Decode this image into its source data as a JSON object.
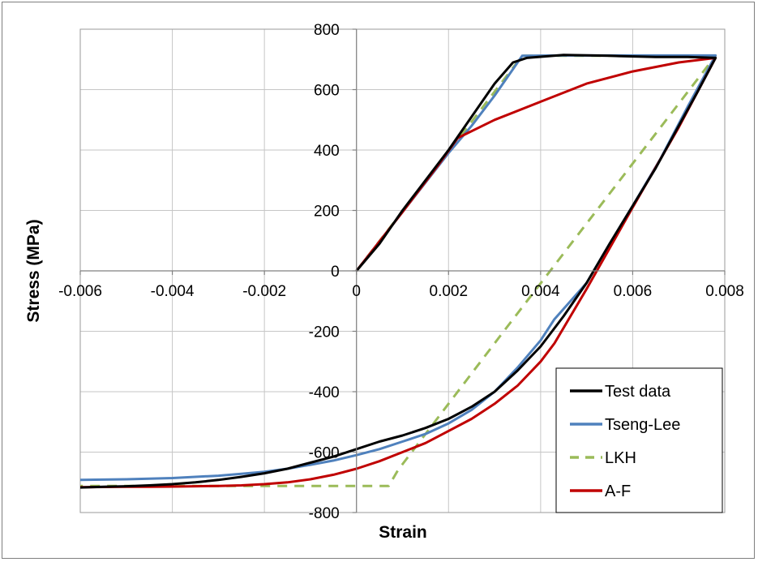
{
  "chart_data": {
    "type": "line",
    "title": "",
    "xlabel": "Strain",
    "ylabel": "Stress (MPa)",
    "xlim": [
      -0.006,
      0.008
    ],
    "ylim": [
      -800,
      800
    ],
    "grid": true,
    "legend_position": "bottom-right",
    "x_ticks": [
      "-0.006",
      "-0.004",
      "-0.002",
      "0",
      "0.002",
      "0.004",
      "0.006",
      "0.008"
    ],
    "y_ticks": [
      "-800",
      "-600",
      "-400",
      "-200",
      "0",
      "200",
      "400",
      "600",
      "800"
    ],
    "series": [
      {
        "name": "Test data",
        "color": "#000000",
        "dash": "solid",
        "points": [
          [
            0,
            0
          ],
          [
            0.0005,
            90
          ],
          [
            0.001,
            200
          ],
          [
            0.0015,
            300
          ],
          [
            0.002,
            400
          ],
          [
            0.0025,
            510
          ],
          [
            0.003,
            620
          ],
          [
            0.0034,
            690
          ],
          [
            0.0037,
            705
          ],
          [
            0.0045,
            715
          ],
          [
            0.0055,
            712
          ],
          [
            0.0065,
            708
          ],
          [
            0.0072,
            708
          ],
          [
            0.0078,
            705
          ],
          [
            0.0074,
            590
          ],
          [
            0.007,
            480
          ],
          [
            0.0065,
            340
          ],
          [
            0.006,
            215
          ],
          [
            0.0055,
            90
          ],
          [
            0.005,
            -40
          ],
          [
            0.0045,
            -150
          ],
          [
            0.004,
            -250
          ],
          [
            0.0035,
            -330
          ],
          [
            0.003,
            -400
          ],
          [
            0.0025,
            -450
          ],
          [
            0.002,
            -490
          ],
          [
            0.0015,
            -520
          ],
          [
            0.001,
            -545
          ],
          [
            0.0005,
            -565
          ],
          [
            0,
            -590
          ],
          [
            -0.0005,
            -615
          ],
          [
            -0.001,
            -635
          ],
          [
            -0.0015,
            -655
          ],
          [
            -0.002,
            -670
          ],
          [
            -0.0025,
            -682
          ],
          [
            -0.003,
            -692
          ],
          [
            -0.0035,
            -700
          ],
          [
            -0.004,
            -706
          ],
          [
            -0.0045,
            -710
          ],
          [
            -0.005,
            -713
          ],
          [
            -0.0055,
            -715
          ],
          [
            -0.006,
            -717
          ]
        ]
      },
      {
        "name": "Tseng-Lee",
        "color": "#4f81bd",
        "dash": "solid",
        "points": [
          [
            0,
            0
          ],
          [
            0.001,
            195
          ],
          [
            0.002,
            390
          ],
          [
            0.0025,
            480
          ],
          [
            0.003,
            580
          ],
          [
            0.0035,
            690
          ],
          [
            0.0036,
            712
          ],
          [
            0.0045,
            713
          ],
          [
            0.0055,
            713
          ],
          [
            0.0065,
            713
          ],
          [
            0.0078,
            713
          ],
          [
            0.0072,
            545
          ],
          [
            0.0066,
            370
          ],
          [
            0.006,
            215
          ],
          [
            0.0055,
            90
          ],
          [
            0.005,
            -40
          ],
          [
            0.0043,
            -160
          ],
          [
            0.004,
            -230
          ],
          [
            0.0035,
            -320
          ],
          [
            0.003,
            -400
          ],
          [
            0.0025,
            -460
          ],
          [
            0.002,
            -505
          ],
          [
            0.0015,
            -540
          ],
          [
            0.001,
            -565
          ],
          [
            0.0005,
            -590
          ],
          [
            0,
            -610
          ],
          [
            -0.0005,
            -628
          ],
          [
            -0.001,
            -642
          ],
          [
            -0.0015,
            -655
          ],
          [
            -0.002,
            -665
          ],
          [
            -0.0025,
            -672
          ],
          [
            -0.003,
            -678
          ],
          [
            -0.0035,
            -682
          ],
          [
            -0.004,
            -686
          ],
          [
            -0.0045,
            -688
          ],
          [
            -0.005,
            -690
          ],
          [
            -0.0055,
            -691
          ],
          [
            -0.006,
            -692
          ]
        ]
      },
      {
        "name": "LKH",
        "color": "#9bbb59",
        "dash": "dashed",
        "points": [
          [
            0,
            0
          ],
          [
            0.0018,
            355
          ],
          [
            0.0036,
            712
          ],
          [
            0.0078,
            712
          ],
          [
            0.0032,
            -200
          ],
          [
            0.0018,
            -480
          ],
          [
            0.0009,
            -660
          ],
          [
            0.0007,
            -712
          ],
          [
            -0.0025,
            -712
          ],
          [
            -0.006,
            -712
          ]
        ]
      },
      {
        "name": "A-F",
        "color": "#c00000",
        "dash": "solid",
        "points": [
          [
            0,
            0
          ],
          [
            0.001,
            195
          ],
          [
            0.0018,
            355
          ],
          [
            0.0022,
            440
          ],
          [
            0.003,
            500
          ],
          [
            0.004,
            560
          ],
          [
            0.005,
            620
          ],
          [
            0.006,
            660
          ],
          [
            0.007,
            690
          ],
          [
            0.0078,
            705
          ],
          [
            0.007,
            475
          ],
          [
            0.006,
            210
          ],
          [
            0.005,
            -60
          ],
          [
            0.0043,
            -240
          ],
          [
            0.004,
            -300
          ],
          [
            0.0035,
            -380
          ],
          [
            0.003,
            -440
          ],
          [
            0.0025,
            -490
          ],
          [
            0.002,
            -530
          ],
          [
            0.0015,
            -570
          ],
          [
            0.001,
            -600
          ],
          [
            0.0005,
            -630
          ],
          [
            0,
            -655
          ],
          [
            -0.0005,
            -675
          ],
          [
            -0.001,
            -690
          ],
          [
            -0.0015,
            -700
          ],
          [
            -0.002,
            -706
          ],
          [
            -0.0025,
            -710
          ],
          [
            -0.003,
            -712
          ],
          [
            -0.0035,
            -713
          ],
          [
            -0.004,
            -714
          ],
          [
            -0.0045,
            -715
          ],
          [
            -0.005,
            -715
          ],
          [
            -0.006,
            -716
          ]
        ]
      }
    ]
  }
}
